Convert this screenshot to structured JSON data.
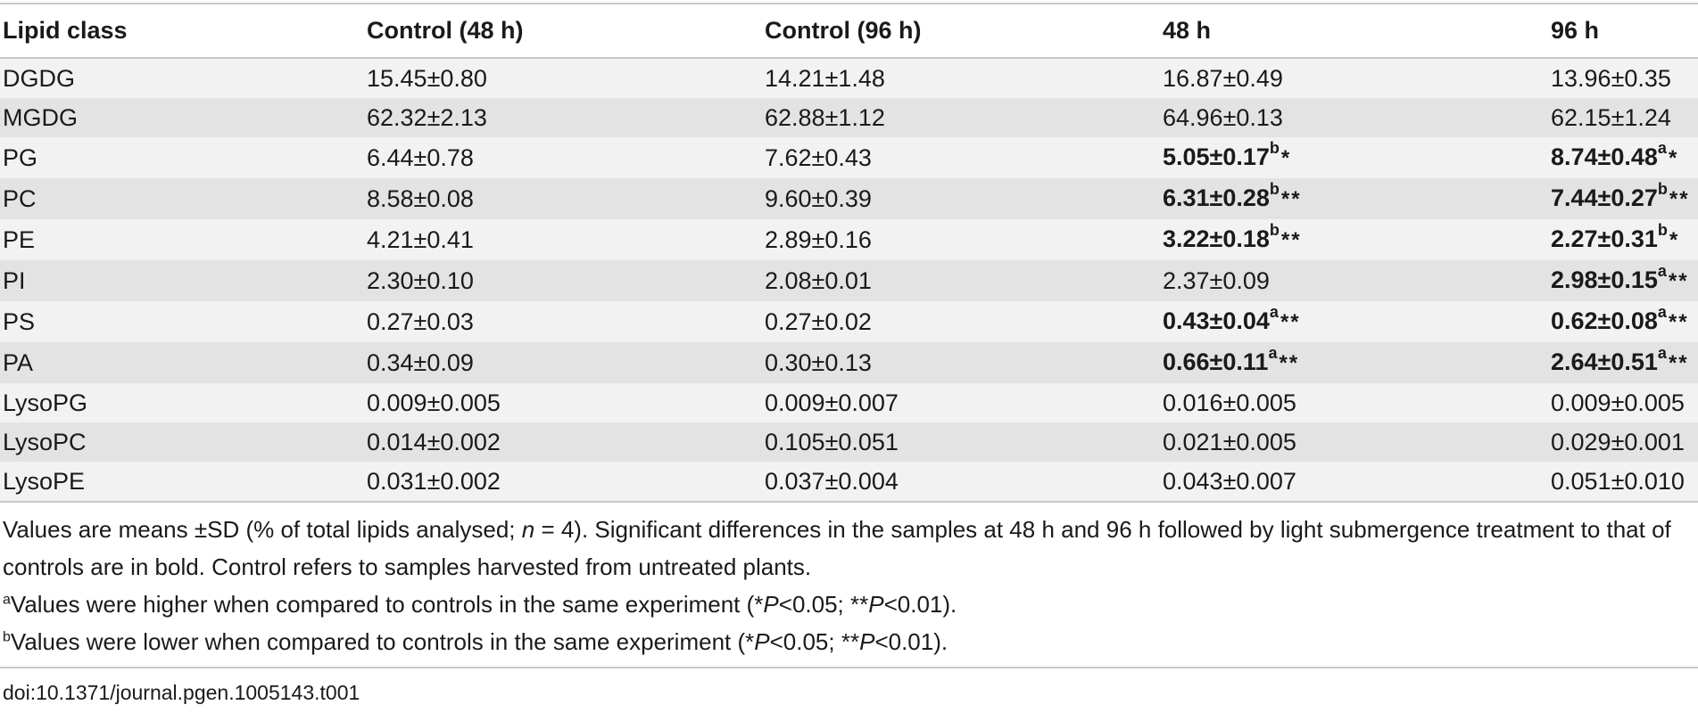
{
  "table": {
    "headers": [
      "Lipid class",
      "Control (48 h)",
      "Control (96 h)",
      "48 h",
      "96 h"
    ],
    "rows": [
      {
        "cells": [
          {
            "text": "DGDG"
          },
          {
            "text": "15.45±0.80"
          },
          {
            "text": "14.21±1.48"
          },
          {
            "text": "16.87±0.49"
          },
          {
            "text": "13.96±0.35"
          }
        ]
      },
      {
        "cells": [
          {
            "text": "MGDG"
          },
          {
            "text": "62.32±2.13"
          },
          {
            "text": "62.88±1.12"
          },
          {
            "text": "64.96±0.13"
          },
          {
            "text": "62.15±1.24"
          }
        ]
      },
      {
        "cells": [
          {
            "text": "PG"
          },
          {
            "text": "6.44±0.78"
          },
          {
            "text": "7.62±0.43"
          },
          {
            "text": "5.05±0.17",
            "bold": true,
            "mark": "b",
            "stars": "*"
          },
          {
            "text": "8.74±0.48",
            "bold": true,
            "mark": "a",
            "stars": "*"
          }
        ]
      },
      {
        "cells": [
          {
            "text": "PC"
          },
          {
            "text": "8.58±0.08"
          },
          {
            "text": "9.60±0.39"
          },
          {
            "text": "6.31±0.28",
            "bold": true,
            "mark": "b",
            "stars": "**"
          },
          {
            "text": "7.44±0.27",
            "bold": true,
            "mark": "b",
            "stars": "**"
          }
        ]
      },
      {
        "cells": [
          {
            "text": "PE"
          },
          {
            "text": "4.21±0.41"
          },
          {
            "text": "2.89±0.16"
          },
          {
            "text": "3.22±0.18",
            "bold": true,
            "mark": "b",
            "stars": "**"
          },
          {
            "text": "2.27±0.31",
            "bold": true,
            "mark": "b",
            "stars": "*"
          }
        ]
      },
      {
        "cells": [
          {
            "text": "PI"
          },
          {
            "text": "2.30±0.10"
          },
          {
            "text": "2.08±0.01"
          },
          {
            "text": "2.37±0.09"
          },
          {
            "text": "2.98±0.15",
            "bold": true,
            "mark": "a",
            "stars": "**"
          }
        ]
      },
      {
        "cells": [
          {
            "text": "PS"
          },
          {
            "text": "0.27±0.03"
          },
          {
            "text": "0.27±0.02"
          },
          {
            "text": "0.43±0.04",
            "bold": true,
            "mark": "a",
            "stars": "**"
          },
          {
            "text": "0.62±0.08",
            "bold": true,
            "mark": "a",
            "stars": "**"
          }
        ]
      },
      {
        "cells": [
          {
            "text": "PA"
          },
          {
            "text": "0.34±0.09"
          },
          {
            "text": "0.30±0.13"
          },
          {
            "text": "0.66±0.11",
            "bold": true,
            "mark": "a",
            "stars": "**"
          },
          {
            "text": "2.64±0.51",
            "bold": true,
            "mark": "a",
            "stars": "**"
          }
        ]
      },
      {
        "cells": [
          {
            "text": "LysoPG"
          },
          {
            "text": "0.009±0.005"
          },
          {
            "text": "0.009±0.007"
          },
          {
            "text": "0.016±0.005"
          },
          {
            "text": "0.009±0.005"
          }
        ]
      },
      {
        "cells": [
          {
            "text": "LysoPC"
          },
          {
            "text": "0.014±0.002"
          },
          {
            "text": "0.105±0.051"
          },
          {
            "text": "0.021±0.005"
          },
          {
            "text": "0.029±0.001"
          }
        ]
      },
      {
        "cells": [
          {
            "text": "LysoPE"
          },
          {
            "text": "0.031±0.002"
          },
          {
            "text": "0.037±0.004"
          },
          {
            "text": "0.043±0.007"
          },
          {
            "text": "0.051±0.010"
          }
        ]
      }
    ]
  },
  "notes": {
    "main_pre": "Values are means ±SD (% of total lipids analysed; ",
    "main_n": "n",
    "main_post": " = 4). Significant differences in the samples at 48 h and 96 h followed by light submergence treatment to that of controls are in bold. Control refers to samples harvested from untreated plants.",
    "fn_a_mark": "a",
    "fn_a_text1": "Values were higher when compared to controls in the same experiment (*",
    "fn_a_text2": "<0.05; **",
    "fn_a_text3": "<0.01).",
    "fn_b_mark": "b",
    "fn_b_text1": "Values were lower when compared to controls in the same experiment (*",
    "fn_b_text2": "<0.05; **",
    "fn_b_text3": "<0.01).",
    "p_symbol": "P"
  },
  "doi": "doi:10.1371/journal.pgen.1005143.t001",
  "colors": {
    "row_light": "#f2f2f2",
    "row_dark": "#e3e3e3",
    "rule": "#c9c9c9",
    "text": "#1a1a1a"
  }
}
